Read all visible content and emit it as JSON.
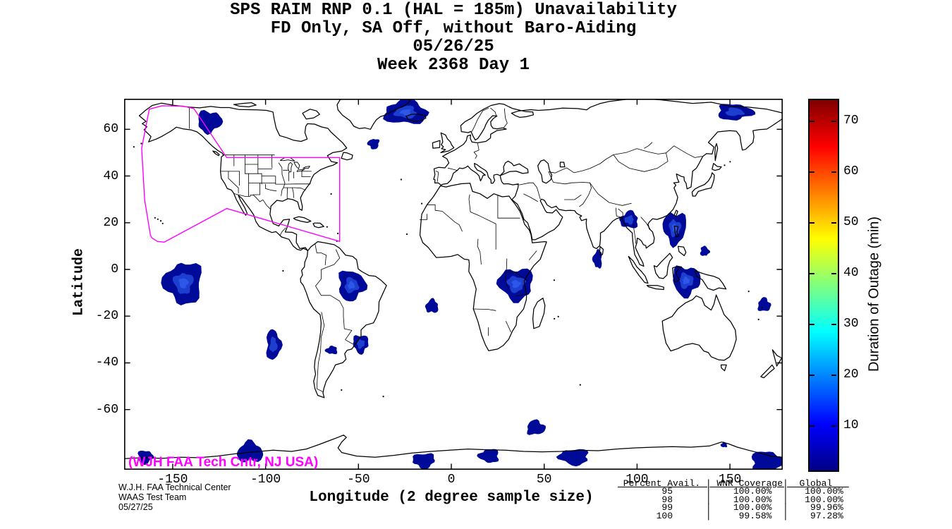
{
  "title": {
    "lines": [
      "SPS RAIM RNP 0.1 (HAL = 185m) Unavailability",
      "FD Only, SA Off, without Baro-Aiding",
      "05/26/25",
      "Week 2368 Day 1"
    ]
  },
  "axes": {
    "xlabel": "Longitude (2 degree sample size)",
    "ylabel": "Latitude",
    "x_ticks": [
      -150,
      -100,
      -50,
      0,
      50,
      100,
      150
    ],
    "y_ticks": [
      60,
      40,
      20,
      0,
      -20,
      -40,
      -60
    ]
  },
  "colorbar": {
    "label": "Duration of Outage (min)",
    "ticks": [
      10,
      20,
      30,
      40,
      50,
      60,
      70
    ],
    "range_min": 1,
    "range_max": 75,
    "colormap": "jet"
  },
  "annotations": {
    "map_credit": "(WJH FAA Tech Cntr, NJ USA)",
    "credit_color": "#ff00ff",
    "footer_lines": [
      "W.J.H. FAA Technical Center",
      "WAAS Test Team",
      "05/27/25"
    ]
  },
  "coverage_table": {
    "lines": [
      "_Percent_Avail._|_WNR_Coverage|__Global___",
      "        95      |    100.00%  |   100.00% ",
      "        98      |    100.00%  |   100.00% ",
      "        99      |    100.00%  |    99.96% ",
      "       100      |     99.58%  |    97.28% "
    ]
  },
  "chart_data": {
    "type": "heatmap",
    "title": "SPS RAIM RNP 0.1 (HAL = 185m) Unavailability",
    "subtitle": "FD Only, SA Off, without Baro-Aiding",
    "date": "05/26/25",
    "gps_week": 2368,
    "gps_day": 1,
    "xlabel": "Longitude (2 degree sample size)",
    "ylabel": "Latitude",
    "xlim": [
      -176,
      178
    ],
    "ylim": [
      -86,
      73
    ],
    "colorbar": {
      "label": "Duration of Outage (min)",
      "min": 1,
      "max": 75,
      "ticks": [
        10,
        20,
        30,
        40,
        50,
        60,
        70
      ],
      "colormap": "jet"
    },
    "availability_table": {
      "columns": [
        "Percent Avail.",
        "WNR Coverage",
        "Global"
      ],
      "rows": [
        [
          95,
          "100.00%",
          "100.00%"
        ],
        [
          98,
          "100.00%",
          "100.00%"
        ],
        [
          99,
          "100.00%",
          "99.96%"
        ],
        [
          100,
          "99.58%",
          "97.28%"
        ]
      ]
    },
    "outage_regions": [
      {
        "lon": -130.3,
        "lat": 63.3,
        "rx_deg": 6.5,
        "ry_deg": 4.6,
        "approx_peak_min": 6
      },
      {
        "lon": -24.5,
        "lat": 67.3,
        "rx_deg": 11.5,
        "ry_deg": 5.2,
        "approx_peak_min": 10
      },
      {
        "lon": -41.8,
        "lat": 53.8,
        "rx_deg": 3.0,
        "ry_deg": 2.2,
        "approx_peak_min": 4
      },
      {
        "lon": 152.5,
        "lat": 67.4,
        "rx_deg": 9.5,
        "ry_deg": 3.4,
        "approx_peak_min": 8
      },
      {
        "lon": 95.8,
        "lat": 21.2,
        "rx_deg": 4.8,
        "ry_deg": 3.6,
        "approx_peak_min": 9
      },
      {
        "lon": 120.3,
        "lat": 17.8,
        "rx_deg": 6.2,
        "ry_deg": 6.8,
        "approx_peak_min": 12
      },
      {
        "lon": 136.4,
        "lat": 7.8,
        "rx_deg": 2.4,
        "ry_deg": 2.1,
        "approx_peak_min": 4
      },
      {
        "lon": 78.8,
        "lat": 4.4,
        "rx_deg": 2.4,
        "ry_deg": 3.9,
        "approx_peak_min": 5
      },
      {
        "lon": 126.4,
        "lat": -4.8,
        "rx_deg": 7.4,
        "ry_deg": 6.3,
        "approx_peak_min": 12
      },
      {
        "lon": 168.4,
        "lat": -15.2,
        "rx_deg": 3.4,
        "ry_deg": 2.9,
        "approx_peak_min": 5
      },
      {
        "lon": -144.2,
        "lat": -5.8,
        "rx_deg": 10.2,
        "ry_deg": 8.8,
        "approx_peak_min": 10
      },
      {
        "lon": -53.8,
        "lat": -6.8,
        "rx_deg": 7.2,
        "ry_deg": 6.4,
        "approx_peak_min": 11
      },
      {
        "lon": -10.4,
        "lat": -15.8,
        "rx_deg": 3.4,
        "ry_deg": 2.9,
        "approx_peak_min": 4
      },
      {
        "lon": 34.8,
        "lat": -6.2,
        "rx_deg": 9.2,
        "ry_deg": 6.8,
        "approx_peak_min": 12
      },
      {
        "lon": -95.8,
        "lat": -32.3,
        "rx_deg": 3.9,
        "ry_deg": 6.4,
        "approx_peak_min": 8
      },
      {
        "lon": -64.4,
        "lat": -34.6,
        "rx_deg": 3.2,
        "ry_deg": 1.7,
        "approx_peak_min": 4
      },
      {
        "lon": -48.8,
        "lat": -31.8,
        "rx_deg": 4.1,
        "ry_deg": 3.9,
        "approx_peak_min": 7
      },
      {
        "lon": 45.4,
        "lat": -67.8,
        "rx_deg": 4.9,
        "ry_deg": 3.1,
        "approx_peak_min": 5
      },
      {
        "lon": 20.4,
        "lat": -79.8,
        "rx_deg": 5.4,
        "ry_deg": 2.9,
        "approx_peak_min": 4
      },
      {
        "lon": -164.8,
        "lat": -80.3,
        "rx_deg": 3.9,
        "ry_deg": 2.9,
        "approx_peak_min": 4
      },
      {
        "lon": -108.4,
        "lat": -78.3,
        "rx_deg": 6.9,
        "ry_deg": 4.4,
        "approx_peak_min": 5
      },
      {
        "lon": 66.1,
        "lat": -80.3,
        "rx_deg": 7.9,
        "ry_deg": 3.4,
        "approx_peak_min": 5
      },
      {
        "lon": 170.1,
        "lat": -82.3,
        "rx_deg": 8.9,
        "ry_deg": 4.4,
        "approx_peak_min": 5
      },
      {
        "lon": 146.8,
        "lat": -75.1,
        "rx_deg": 1.7,
        "ry_deg": 1.1,
        "approx_peak_min": 3
      },
      {
        "lon": -14.8,
        "lat": -81.8,
        "rx_deg": 5.9,
        "ry_deg": 3.2,
        "approx_peak_min": 4
      }
    ],
    "waas_coverage_polygon": [
      [
        -162.6,
        68.6
      ],
      [
        -155.7,
        70.1
      ],
      [
        -144.3,
        69.9
      ],
      [
        -138.6,
        68.9
      ],
      [
        -120.9,
        47.9
      ],
      [
        -60.1,
        47.9
      ],
      [
        -60.1,
        12.0
      ],
      [
        -120.9,
        26.1
      ],
      [
        -154.5,
        11.7
      ],
      [
        -158.2,
        12.0
      ],
      [
        -161.2,
        13.5
      ],
      [
        -162.0,
        14.7
      ],
      [
        -165.1,
        29.8
      ],
      [
        -166.7,
        51.9
      ]
    ],
    "region_fill_color": "#000a99",
    "region_core_color": "#1d3fd0",
    "coverage_line_color": "#ff00ff"
  }
}
